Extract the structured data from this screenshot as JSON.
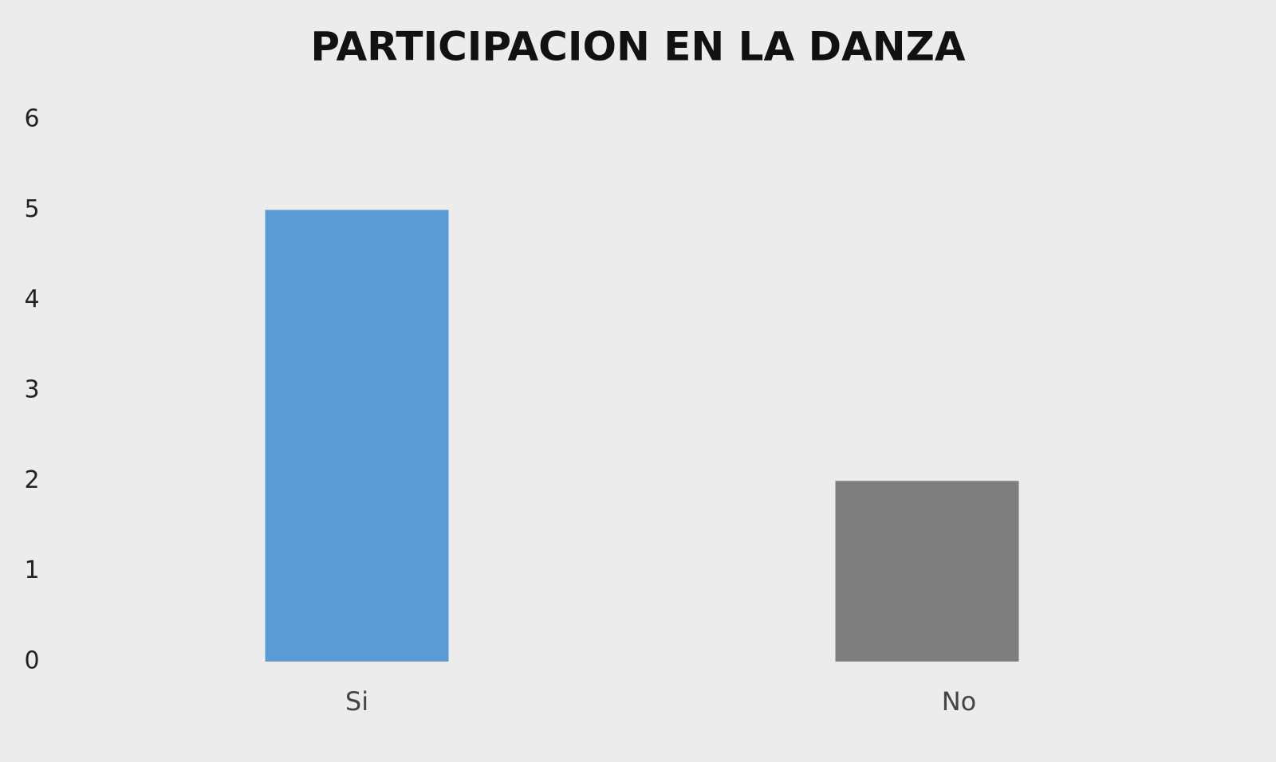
{
  "chart_data": {
    "type": "bar",
    "title": "PARTICIPACION EN LA DANZA",
    "categories": [
      "Si",
      "No"
    ],
    "values": [
      5,
      2
    ],
    "colors": [
      "#5b9bd5",
      "#7f7f7f"
    ],
    "ylim": [
      0,
      6
    ],
    "yticks": [
      0,
      1,
      2,
      3,
      4,
      5,
      6
    ],
    "grid": false
  }
}
